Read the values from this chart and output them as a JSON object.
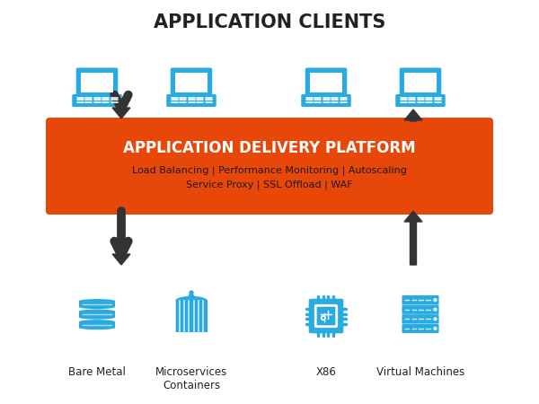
{
  "title": "APPLICATION CLIENTS",
  "platform_title": "APPLICATION DELIVERY PLATFORM",
  "platform_subtitle1": "Load Balancing | Performance Monitoring | Autoscaling",
  "platform_subtitle2": "Service Proxy | SSL Offload | WAF",
  "bottom_labels": [
    "Bare Metal",
    "Microservices\nContainers",
    "X86",
    "Virtual Machines"
  ],
  "platform_color": "#E8470A",
  "icon_color": "#29ABE2",
  "arrow_color": "#333333",
  "bg_color": "#FFFFFF",
  "platform_text_color": "#FFFFFF",
  "platform_subtitle_color": "#222222",
  "title_color": "#222222"
}
